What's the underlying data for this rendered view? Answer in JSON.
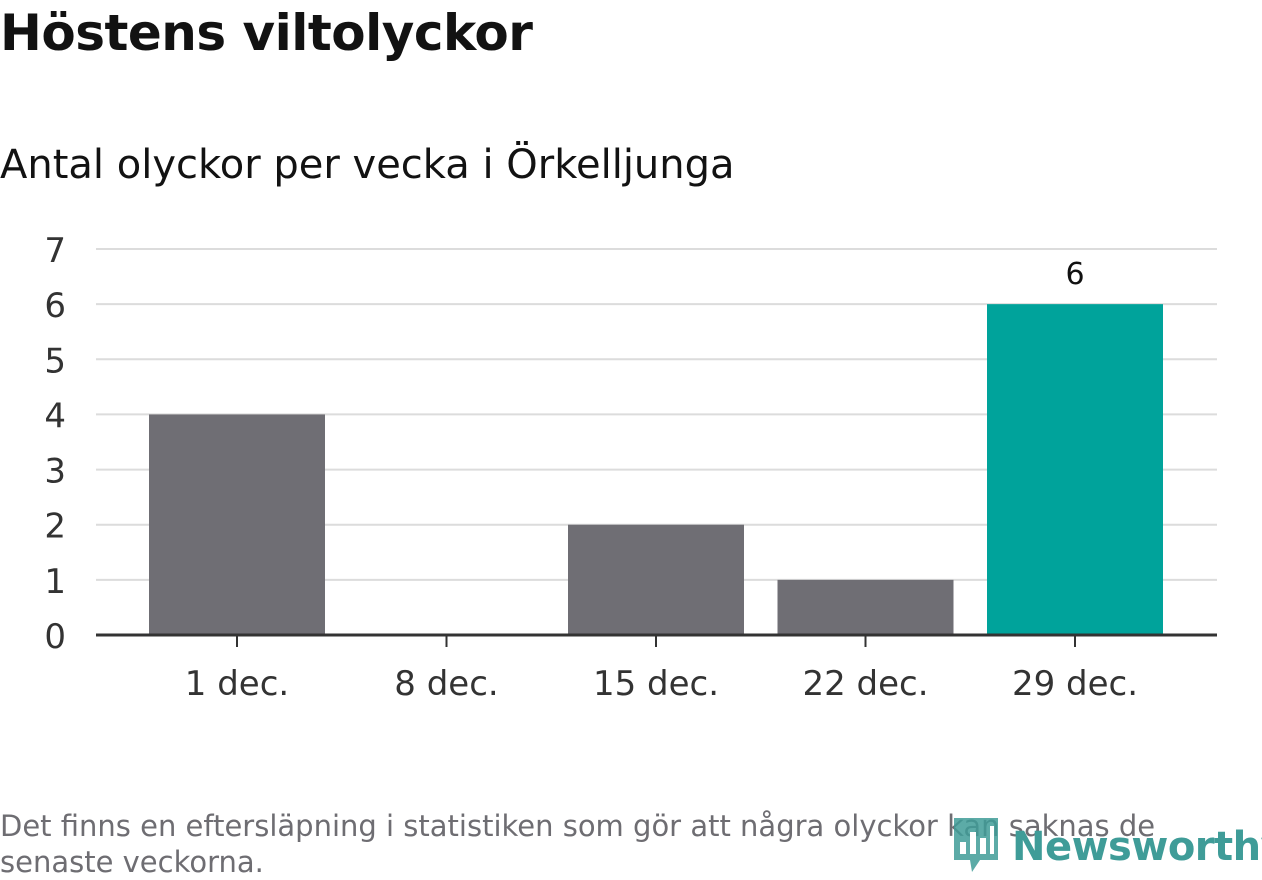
{
  "header": {
    "title": "Höstens viltolyckor",
    "subtitle": "Antal olyckor per vecka i Örkelljunga"
  },
  "footer": {
    "note": "Det finns en eftersläpning i statistiken som gör att några olyckor kan saknas de senaste veckorna.",
    "brand": "Newsworthy",
    "brand_icon": "newsworthy-logo-icon"
  },
  "colors": {
    "bar_default": "#6f6e74",
    "bar_highlight": "#00a39b",
    "grid": "#dcdcdc",
    "axis": "#333333",
    "brand": "#3f9c98"
  },
  "chart_data": {
    "type": "bar",
    "categories": [
      "1 dec.",
      "8 dec.",
      "15 dec.",
      "22 dec.",
      "29 dec."
    ],
    "values": [
      4,
      0,
      2,
      1,
      6
    ],
    "highlight_index": 4,
    "data_labels": [
      null,
      null,
      null,
      null,
      "6"
    ],
    "ylim": [
      0,
      7
    ],
    "yticks": [
      "0",
      "1",
      "2",
      "3",
      "4",
      "5",
      "6",
      "7"
    ],
    "grid": true,
    "xlabel": "",
    "ylabel": ""
  }
}
